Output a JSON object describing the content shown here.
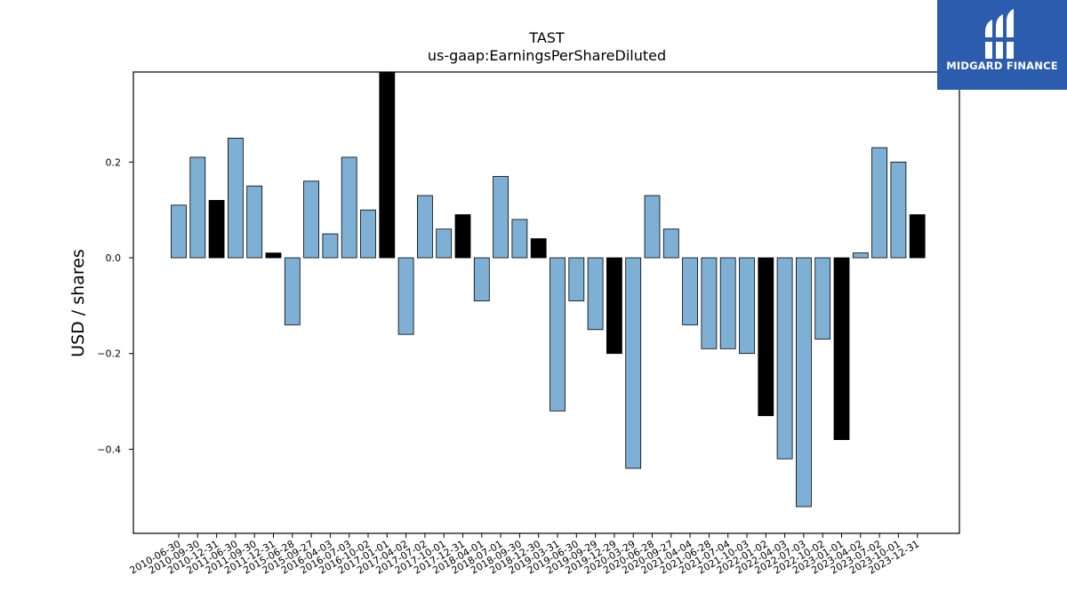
{
  "logo": {
    "text": "MIDGARD FINANCE",
    "icon": "midgard-finance-logo-icon",
    "background": "#2b5cad"
  },
  "chart_data": {
    "type": "bar",
    "title": "TAST",
    "subtitle": "us-gaap:EarningsPerShareDiluted",
    "xlabel": "",
    "ylabel": "USD / shares",
    "ylim": [
      -0.58,
      0.39
    ],
    "yticks": [
      -0.4,
      -0.2,
      0.0,
      0.2
    ],
    "ytick_labels": [
      "−0.4",
      "−0.2",
      "0.0",
      "0.2"
    ],
    "grid": false,
    "colors": {
      "default": "#7eb0d5",
      "highlight": "#000000",
      "edge": "#000000"
    },
    "categories": [
      "2010-06-30",
      "2010-09-30",
      "2010-12-31",
      "2011-06-30",
      "2011-09-30",
      "2011-12-31",
      "2015-06-28",
      "2015-09-27",
      "2016-04-03",
      "2016-07-03",
      "2016-10-02",
      "2017-01-01",
      "2017-04-02",
      "2017-07-02",
      "2017-10-01",
      "2017-12-31",
      "2018-04-01",
      "2018-07-01",
      "2018-09-30",
      "2018-12-30",
      "2019-03-31",
      "2019-06-30",
      "2019-09-29",
      "2019-12-29",
      "2020-03-29",
      "2020-06-28",
      "2020-09-27",
      "2021-04-04",
      "2021-06-28",
      "2021-07-04",
      "2021-10-03",
      "2022-01-02",
      "2022-04-03",
      "2022-07-03",
      "2022-10-02",
      "2023-01-01",
      "2023-04-02",
      "2023-07-02",
      "2023-10-01",
      "2023-12-31"
    ],
    "values": [
      0.11,
      0.21,
      0.12,
      0.25,
      0.15,
      0.01,
      -0.14,
      0.16,
      0.05,
      0.21,
      0.1,
      0.39,
      -0.16,
      0.13,
      0.06,
      0.09,
      -0.09,
      0.17,
      0.08,
      0.04,
      -0.32,
      -0.09,
      -0.15,
      -0.2,
      -0.44,
      0.13,
      0.06,
      -0.14,
      -0.19,
      -0.19,
      -0.2,
      -0.33,
      -0.42,
      -0.52,
      -0.17,
      -0.38,
      0.01,
      0.23,
      0.2,
      0.09
    ],
    "highlight": [
      false,
      false,
      true,
      false,
      false,
      true,
      false,
      false,
      false,
      false,
      false,
      true,
      false,
      false,
      false,
      true,
      false,
      false,
      false,
      true,
      false,
      false,
      false,
      true,
      false,
      false,
      false,
      false,
      false,
      false,
      false,
      true,
      false,
      false,
      false,
      true,
      false,
      false,
      false,
      true
    ]
  }
}
